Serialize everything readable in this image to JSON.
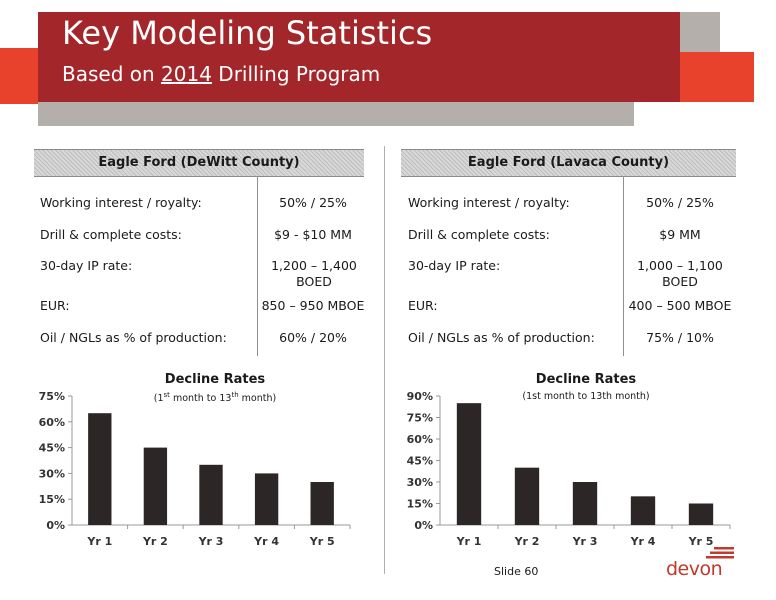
{
  "header": {
    "title": "Key Modeling Statistics",
    "subtitle_pre": "Based on ",
    "subtitle_year": "2014",
    "subtitle_post": " Drilling Program"
  },
  "panels": [
    {
      "heading": "Eagle Ford (DeWitt County)",
      "rows": [
        {
          "label": "Working interest / royalty:",
          "value": "50% / 25%"
        },
        {
          "label": "Drill & complete costs:",
          "value": "$9 - $10 MM"
        },
        {
          "label": "30-day IP rate:",
          "value": "1,200 – 1,400 BOED"
        },
        {
          "label": "EUR:",
          "value": "850 – 950 MBOE"
        },
        {
          "label": "Oil / NGLs as % of production:",
          "value": "60% / 20%"
        }
      ]
    },
    {
      "heading": "Eagle Ford (Lavaca County)",
      "rows": [
        {
          "label": "Working interest / royalty:",
          "value": "50% / 25%"
        },
        {
          "label": "Drill & complete costs:",
          "value": "$9 MM"
        },
        {
          "label": "30-day IP rate:",
          "value": "1,000 – 1,100 BOED"
        },
        {
          "label": "EUR:",
          "value": "400 – 500 MBOE"
        },
        {
          "label": "Oil / NGLs as % of production:",
          "value": "75% / 10%"
        }
      ]
    }
  ],
  "chart_data": [
    {
      "type": "bar",
      "title": "Decline Rates",
      "subtitle": {
        "pre": "(1",
        "sup1": "st",
        "mid": " month to 13",
        "sup2": "th",
        "post": " month)"
      },
      "categories": [
        "Yr 1",
        "Yr 2",
        "Yr 3",
        "Yr 4",
        "Yr 5"
      ],
      "values": [
        65,
        45,
        35,
        30,
        25
      ],
      "yticks": [
        "0%",
        "15%",
        "30%",
        "45%",
        "60%",
        "75%"
      ],
      "ylim": [
        0,
        75
      ],
      "bar_color": "#2d2626"
    },
    {
      "type": "bar",
      "title": "Decline Rates",
      "subtitle": "(1st month to 13th month)",
      "categories": [
        "Yr 1",
        "Yr 2",
        "Yr 3",
        "Yr 4",
        "Yr 5"
      ],
      "values": [
        85,
        40,
        30,
        20,
        15
      ],
      "yticks": [
        "0%",
        "15%",
        "30%",
        "45%",
        "60%",
        "75%",
        "90%"
      ],
      "ylim": [
        0,
        90
      ],
      "bar_color": "#2d2626"
    }
  ],
  "footer": {
    "slide_label": "Slide 60",
    "logo_text": "devon",
    "logo_color": "#c0392b"
  },
  "colors": {
    "brand_red": "#a3262a",
    "brand_orange": "#e8412c",
    "brand_gray": "#b4afaa"
  }
}
